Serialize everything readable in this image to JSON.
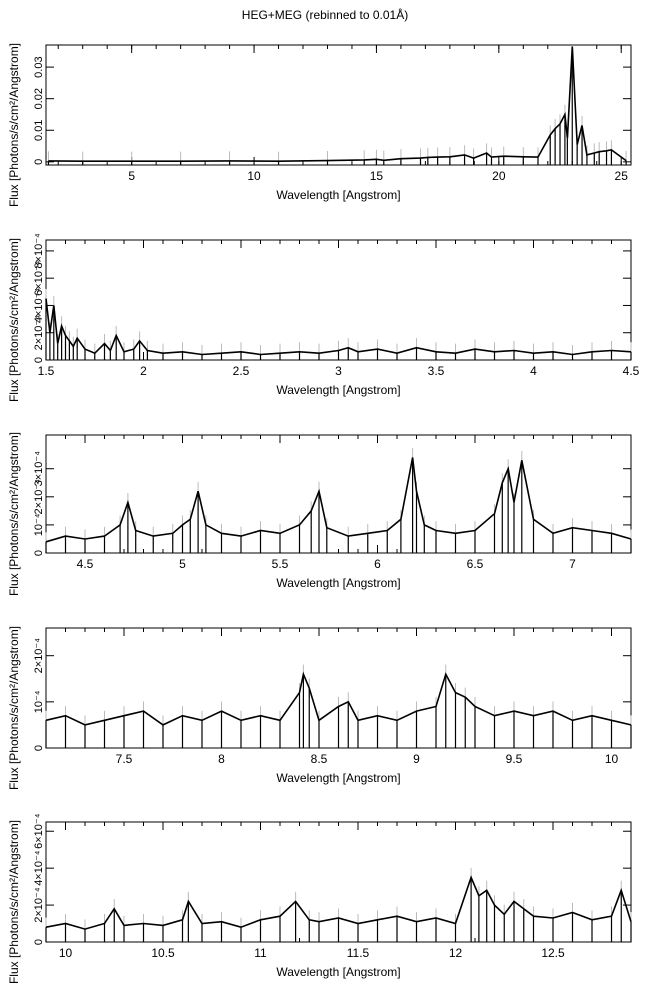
{
  "title": "HEG+MEG (rebinned to 0.01Å)",
  "chart_data": [
    {
      "type": "line",
      "title": "HEG+MEG (rebinned to 0.01Å)",
      "xlabel": "Wavelength [Angstrom]",
      "ylabel": "Flux [Photons/s/cm²/Angstrom]",
      "xlim": [
        1.5,
        25.4
      ],
      "ylim": [
        -0.001,
        0.037
      ],
      "xticks": [
        5,
        10,
        15,
        20,
        25
      ],
      "yticks": [
        0,
        0.01,
        0.02,
        0.03
      ],
      "ytick_labels": [
        "0",
        "0.01",
        "0.02",
        "0.03"
      ],
      "series": [
        {
          "x": [
            1.6,
            3.0,
            5.0,
            7.0,
            9.0,
            11.0,
            13.0,
            14.5,
            15.0,
            15.3,
            16.0,
            16.8,
            17.1,
            17.5,
            18.0,
            18.6,
            18.97,
            19.5,
            19.7,
            20.2,
            21.0,
            21.6,
            22.1,
            22.3,
            22.5,
            22.7,
            22.8,
            23.0,
            23.2,
            23.4,
            23.6,
            23.9,
            24.1,
            24.4,
            24.6,
            25.2
          ],
          "y": [
            0.0003,
            0.0002,
            0.0002,
            0.0002,
            0.0003,
            0.0002,
            0.0004,
            0.0006,
            0.0008,
            0.0005,
            0.001,
            0.0012,
            0.0014,
            0.0015,
            0.0016,
            0.0022,
            0.0012,
            0.0028,
            0.0015,
            0.0018,
            0.0016,
            0.0015,
            0.0085,
            0.0105,
            0.012,
            0.015,
            0.0075,
            0.0365,
            0.0055,
            0.0115,
            0.0022,
            0.0028,
            0.0032,
            0.0035,
            0.0038,
            0.0004
          ]
        }
      ]
    },
    {
      "type": "line",
      "xlabel": "Wavelength [Angstrom]",
      "ylabel": "Flux [Photons/s/cm²/Angstrom]",
      "xlim": [
        1.5,
        4.5
      ],
      "ylim": [
        0,
        0.00088
      ],
      "xticks": [
        1.5,
        2,
        2.5,
        3,
        3.5,
        4,
        4.5
      ],
      "yticks": [
        0,
        0.0002,
        0.0004,
        0.0006,
        0.0008
      ],
      "ytick_labels": [
        "0",
        "2×10⁻⁴",
        "4×10⁻⁴",
        "6×10⁻⁴",
        "8×10⁻⁴"
      ],
      "series": [
        {
          "x": [
            1.5,
            1.52,
            1.54,
            1.56,
            1.58,
            1.6,
            1.62,
            1.64,
            1.66,
            1.7,
            1.75,
            1.8,
            1.83,
            1.86,
            1.9,
            1.95,
            1.98,
            2.02,
            2.1,
            2.2,
            2.3,
            2.4,
            2.5,
            2.6,
            2.7,
            2.8,
            2.9,
            3.0,
            3.05,
            3.1,
            3.2,
            3.3,
            3.4,
            3.5,
            3.6,
            3.7,
            3.8,
            3.9,
            4.0,
            4.1,
            4.2,
            4.3,
            4.4,
            4.5
          ],
          "y": [
            0.00045,
            0.0002,
            0.0004,
            0.00012,
            0.00025,
            0.00018,
            0.00014,
            0.0001,
            0.00016,
            8e-05,
            5e-05,
            0.00012,
            7e-05,
            0.00018,
            6e-05,
            8e-05,
            0.00014,
            7e-05,
            5e-05,
            6e-05,
            4e-05,
            5e-05,
            6e-05,
            4e-05,
            5e-05,
            6e-05,
            5e-05,
            7e-05,
            9e-05,
            6e-05,
            8e-05,
            5e-05,
            9e-05,
            6e-05,
            5e-05,
            8e-05,
            6e-05,
            7e-05,
            5e-05,
            6e-05,
            4e-05,
            6e-05,
            7e-05,
            6e-05
          ]
        }
      ]
    },
    {
      "type": "line",
      "xlabel": "Wavelength [Angstrom]",
      "ylabel": "Flux [Photons/s/cm²/Angstrom]",
      "xlim": [
        4.3,
        7.3
      ],
      "ylim": [
        0,
        0.00042
      ],
      "xticks": [
        4.5,
        5,
        5.5,
        6,
        6.5,
        7
      ],
      "yticks": [
        0,
        0.0001,
        0.0002,
        0.0003
      ],
      "ytick_labels": [
        "0",
        "10⁻⁴",
        "2×10⁻⁴",
        "3×10⁻⁴"
      ],
      "series": [
        {
          "x": [
            4.3,
            4.4,
            4.5,
            4.6,
            4.68,
            4.72,
            4.76,
            4.85,
            4.95,
            5.0,
            5.04,
            5.08,
            5.12,
            5.2,
            5.3,
            5.4,
            5.5,
            5.6,
            5.66,
            5.7,
            5.74,
            5.85,
            5.95,
            6.05,
            6.12,
            6.18,
            6.2,
            6.24,
            6.3,
            6.4,
            6.5,
            6.6,
            6.64,
            6.67,
            6.7,
            6.74,
            6.8,
            6.9,
            7.0,
            7.1,
            7.2,
            7.3
          ],
          "y": [
            4e-05,
            6e-05,
            5e-05,
            6e-05,
            0.0001,
            0.00018,
            8e-05,
            6e-05,
            7e-05,
            0.0001,
            0.00012,
            0.00022,
            0.0001,
            7e-05,
            6e-05,
            8e-05,
            7e-05,
            0.0001,
            0.00015,
            0.00022,
            9e-05,
            6e-05,
            7e-05,
            8e-05,
            0.00012,
            0.00034,
            0.00022,
            0.0001,
            8e-05,
            7e-05,
            8e-05,
            0.00014,
            0.00025,
            0.0003,
            0.00018,
            0.00033,
            0.00012,
            7e-05,
            9e-05,
            8e-05,
            7e-05,
            5e-05
          ]
        }
      ]
    },
    {
      "type": "line",
      "xlabel": "Wavelength [Angstrom]",
      "ylabel": "Flux [Photons/s/cm²/Angstrom]",
      "xlim": [
        7.1,
        10.1
      ],
      "ylim": [
        0,
        0.00026
      ],
      "xticks": [
        7.5,
        8,
        8.5,
        9,
        9.5,
        10
      ],
      "yticks": [
        0,
        0.0001,
        0.0002
      ],
      "ytick_labels": [
        "0",
        "10⁻⁴",
        "2×10⁻⁴"
      ],
      "series": [
        {
          "x": [
            7.1,
            7.2,
            7.3,
            7.4,
            7.5,
            7.6,
            7.7,
            7.8,
            7.9,
            8.0,
            8.1,
            8.2,
            8.3,
            8.4,
            8.42,
            8.45,
            8.5,
            8.6,
            8.65,
            8.7,
            8.8,
            8.9,
            9.0,
            9.1,
            9.15,
            9.2,
            9.25,
            9.3,
            9.4,
            9.5,
            9.6,
            9.7,
            9.8,
            9.9,
            10.0,
            10.1
          ],
          "y": [
            6e-05,
            7e-05,
            5e-05,
            6e-05,
            7e-05,
            8e-05,
            5e-05,
            7e-05,
            6e-05,
            8e-05,
            6e-05,
            7e-05,
            6e-05,
            0.00012,
            0.00016,
            0.00013,
            6e-05,
            9e-05,
            0.0001,
            6e-05,
            7e-05,
            6e-05,
            8e-05,
            9e-05,
            0.00016,
            0.00012,
            0.00011,
            9e-05,
            7e-05,
            8e-05,
            7e-05,
            8e-05,
            6e-05,
            7e-05,
            6e-05,
            5e-05
          ]
        }
      ]
    },
    {
      "type": "line",
      "xlabel": "Wavelength [Angstrom]",
      "ylabel": "Flux [Photons/s/cm²/Angstrom]",
      "xlim": [
        9.9,
        12.9
      ],
      "ylim": [
        0,
        0.00065
      ],
      "xticks": [
        10,
        10.5,
        11,
        11.5,
        12,
        12.5
      ],
      "yticks": [
        0,
        0.0002,
        0.0004,
        0.0006
      ],
      "ytick_labels": [
        "0",
        "2×10⁻⁴",
        "4×10⁻⁴",
        "6×10⁻⁴"
      ],
      "series": [
        {
          "x": [
            9.9,
            10.0,
            10.1,
            10.2,
            10.25,
            10.3,
            10.4,
            10.5,
            10.6,
            10.63,
            10.7,
            10.8,
            10.9,
            11.0,
            11.1,
            11.18,
            11.25,
            11.3,
            11.4,
            11.5,
            11.6,
            11.7,
            11.8,
            11.9,
            12.0,
            12.08,
            12.12,
            12.16,
            12.2,
            12.25,
            12.3,
            12.35,
            12.4,
            12.5,
            12.6,
            12.7,
            12.8,
            12.85,
            12.9
          ],
          "y": [
            8e-05,
            0.0001,
            7e-05,
            0.0001,
            0.00018,
            9e-05,
            0.0001,
            9e-05,
            0.00012,
            0.00022,
            0.0001,
            0.00011,
            8e-05,
            0.00012,
            0.00014,
            0.00022,
            0.00012,
            0.00011,
            0.00013,
            0.0001,
            0.00012,
            0.00014,
            0.00011,
            0.00013,
            0.0001,
            0.00035,
            0.00025,
            0.00028,
            0.0002,
            0.00015,
            0.00022,
            0.00018,
            0.00014,
            0.00013,
            0.00016,
            0.00012,
            0.00014,
            0.00028,
            0.00011
          ]
        }
      ]
    }
  ]
}
